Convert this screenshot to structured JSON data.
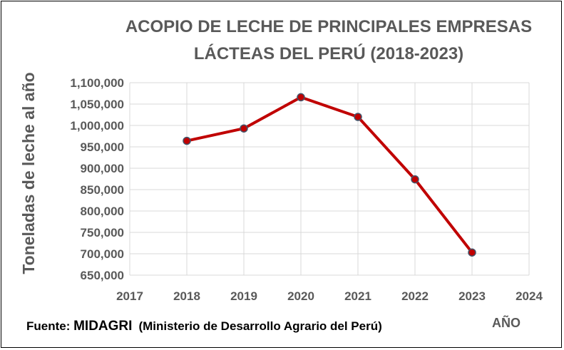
{
  "chart_data": {
    "type": "line",
    "title_lines": [
      "ACOPIO DE LECHE DE PRINCIPALES EMPRESAS",
      "LÁCTEAS DEL PERÚ (2018-2023)"
    ],
    "xlabel": "AÑO",
    "ylabel": "Toneladas de leche al año",
    "xlim": [
      2017,
      2024
    ],
    "ylim": [
      650000,
      1100000
    ],
    "x_ticks": [
      2017,
      2018,
      2019,
      2020,
      2021,
      2022,
      2023,
      2024
    ],
    "x_tick_labels": [
      "2017",
      "2018",
      "2019",
      "2020",
      "2021",
      "2022",
      "2023",
      "2024"
    ],
    "y_ticks": [
      650000,
      700000,
      750000,
      800000,
      850000,
      900000,
      950000,
      1000000,
      1050000,
      1100000
    ],
    "y_tick_labels": [
      "650,000",
      "700,000",
      "750,000",
      "800,000",
      "850,000",
      "900,000",
      "950,000",
      "1,000,000",
      "1,050,000",
      "1,100,000"
    ],
    "grid": true,
    "series": [
      {
        "x": [
          2018,
          2019,
          2020,
          2021,
          2022,
          2023
        ],
        "values": [
          964000,
          993000,
          1066000,
          1020000,
          874000,
          703000
        ],
        "line_color": "#C00000",
        "marker_fill": "#C00000",
        "marker_edge": "#44546A"
      }
    ],
    "source": {
      "prefix": "Fuente: ",
      "org": "MIDAGRI",
      "detail": "(Ministerio de Desarrollo Agrario del Perú)"
    }
  }
}
